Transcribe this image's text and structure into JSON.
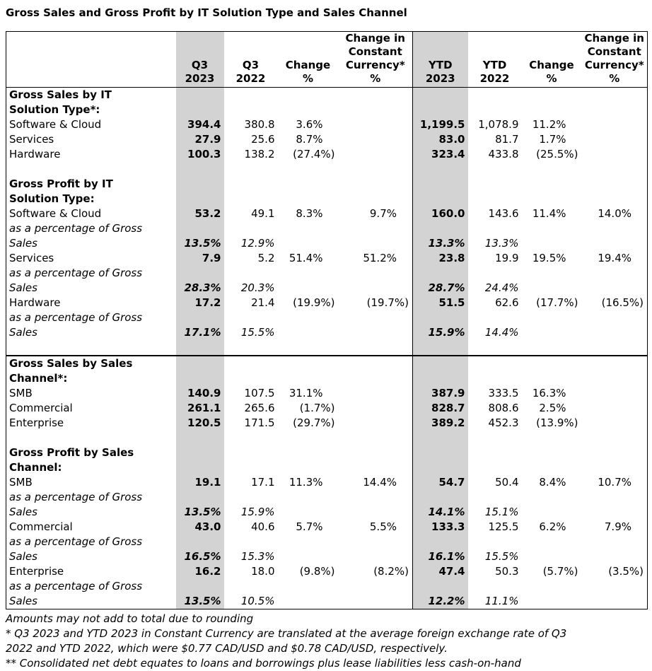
{
  "title": "Gross Sales and Gross Profit by IT Solution Type and Sales Channel",
  "colors": {
    "shaded_column": "#d3d3d3",
    "border": "#000000",
    "text": "#000000"
  },
  "table": {
    "header": [
      "",
      "Q3\n2023",
      "Q3\n2022",
      "Change\n%",
      "Change in\nConstant\nCurrency*\n%",
      "YTD\n2023",
      "YTD\n2022",
      "Change\n%",
      "Change in\nConstant\nCurrency*\n%"
    ],
    "rows": [
      {
        "style": "section",
        "label": "Gross Sales by IT\nSolution Type*:",
        "cells": [
          "",
          "",
          "",
          "",
          "",
          "",
          "",
          ""
        ]
      },
      {
        "style": "item",
        "label": "Software & Cloud",
        "cells": [
          "394.4",
          "380.8",
          "3.6%",
          "",
          "1,199.5",
          "1,078.9",
          "11.2%",
          ""
        ]
      },
      {
        "style": "item",
        "label": "Services",
        "cells": [
          "27.9",
          "25.6",
          "8.7%",
          "",
          "83.0",
          "81.7",
          "1.7%",
          ""
        ]
      },
      {
        "style": "item",
        "label": "Hardware",
        "cells": [
          "100.3",
          "138.2",
          "(27.4%)",
          "",
          "323.4",
          "433.8",
          "(25.5%)",
          ""
        ]
      },
      {
        "style": "blank",
        "label": "",
        "cells": [
          "",
          "",
          "",
          "",
          "",
          "",
          "",
          ""
        ]
      },
      {
        "style": "section",
        "label": "Gross Profit by IT\nSolution Type:",
        "cells": [
          "",
          "",
          "",
          "",
          "",
          "",
          "",
          ""
        ]
      },
      {
        "style": "item",
        "label": "Software & Cloud",
        "cells": [
          "53.2",
          "49.1",
          "8.3%",
          "9.7%",
          "160.0",
          "143.6",
          "11.4%",
          "14.0%"
        ]
      },
      {
        "style": "pct",
        "label": "as a percentage of Gross\nSales",
        "cells": [
          "13.5%",
          "12.9%",
          "",
          "",
          "13.3%",
          "13.3%",
          "",
          ""
        ]
      },
      {
        "style": "item",
        "label": "Services",
        "cells": [
          "7.9",
          "5.2",
          "51.4%",
          "51.2%",
          "23.8",
          "19.9",
          "19.5%",
          "19.4%"
        ]
      },
      {
        "style": "pct",
        "label": "as a percentage of Gross\nSales",
        "cells": [
          "28.3%",
          "20.3%",
          "",
          "",
          "28.7%",
          "24.4%",
          "",
          ""
        ]
      },
      {
        "style": "item",
        "label": "Hardware",
        "cells": [
          "17.2",
          "21.4",
          "(19.9%)",
          "(19.7%)",
          "51.5",
          "62.6",
          "(17.7%)",
          "(16.5%)"
        ]
      },
      {
        "style": "pct",
        "label": "as a percentage of Gross\nSales",
        "cells": [
          "17.1%",
          "15.5%",
          "",
          "",
          "15.9%",
          "14.4%",
          "",
          ""
        ]
      },
      {
        "style": "blank",
        "label": "",
        "cells": [
          "",
          "",
          "",
          "",
          "",
          "",
          "",
          ""
        ]
      },
      {
        "style": "section",
        "sep": true,
        "label": "Gross Sales by Sales\nChannel*:",
        "cells": [
          "",
          "",
          "",
          "",
          "",
          "",
          "",
          ""
        ]
      },
      {
        "style": "item",
        "label": "SMB",
        "cells": [
          "140.9",
          "107.5",
          "31.1%",
          "",
          "387.9",
          "333.5",
          "16.3%",
          ""
        ]
      },
      {
        "style": "item",
        "label": "Commercial",
        "cells": [
          "261.1",
          "265.6",
          "(1.7%)",
          "",
          "828.7",
          "808.6",
          "2.5%",
          ""
        ]
      },
      {
        "style": "item",
        "label": "Enterprise",
        "cells": [
          "120.5",
          "171.5",
          "(29.7%)",
          "",
          "389.2",
          "452.3",
          "(13.9%)",
          ""
        ]
      },
      {
        "style": "blank",
        "label": "",
        "cells": [
          "",
          "",
          "",
          "",
          "",
          "",
          "",
          ""
        ]
      },
      {
        "style": "section",
        "label": "Gross Profit by Sales\nChannel:",
        "cells": [
          "",
          "",
          "",
          "",
          "",
          "",
          "",
          ""
        ]
      },
      {
        "style": "item",
        "label": "SMB",
        "cells": [
          "19.1",
          "17.1",
          "11.3%",
          "14.4%",
          "54.7",
          "50.4",
          "8.4%",
          "10.7%"
        ]
      },
      {
        "style": "pct",
        "label": "as a percentage of Gross\nSales",
        "cells": [
          "13.5%",
          "15.9%",
          "",
          "",
          "14.1%",
          "15.1%",
          "",
          ""
        ]
      },
      {
        "style": "item",
        "label": "Commercial",
        "cells": [
          "43.0",
          "40.6",
          "5.7%",
          "5.5%",
          "133.3",
          "125.5",
          "6.2%",
          "7.9%"
        ]
      },
      {
        "style": "pct",
        "label": "as a percentage of Gross\nSales",
        "cells": [
          "16.5%",
          "15.3%",
          "",
          "",
          "16.1%",
          "15.5%",
          "",
          ""
        ]
      },
      {
        "style": "item",
        "label": "Enterprise",
        "cells": [
          "16.2",
          "18.0",
          "(9.8%)",
          "(8.2%)",
          "47.4",
          "50.3",
          "(5.7%)",
          "(3.5%)"
        ]
      },
      {
        "style": "pct",
        "label": "as a percentage of Gross\nSales",
        "cells": [
          "13.5%",
          "10.5%",
          "",
          "",
          "12.2%",
          "11.1%",
          "",
          ""
        ]
      }
    ]
  },
  "footnotes": [
    "Amounts may not add to total due to rounding",
    "* Q3 2023 and YTD 2023 in Constant Currency are translated at the average foreign exchange rate of Q3\n2022 and YTD 2022, which were $0.77 CAD/USD and $0.78 CAD/USD, respectively.",
    "** Consolidated net debt equates to loans and borrowings plus lease liabilities less cash-on-hand"
  ]
}
